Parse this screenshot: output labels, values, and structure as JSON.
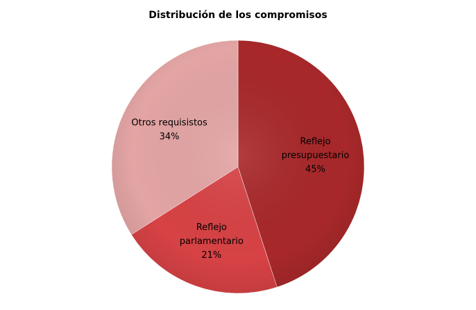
{
  "chart_data": {
    "type": "pie",
    "title": "Distribución de los compromisos",
    "start_angle_deg": 0,
    "direction": "clockwise",
    "slices": [
      {
        "name_lines": [
          "Reflejo",
          "presupuestario"
        ],
        "value": 45,
        "value_label": "45%",
        "color": "#A8282A",
        "label_color": "#ffffff"
      },
      {
        "name_lines": [
          "Reflejo",
          "parlamentario"
        ],
        "value": 21,
        "value_label": "21%",
        "color": "#D74245",
        "label_color": "#ffffff"
      },
      {
        "name_lines": [
          "Otros requisistos"
        ],
        "value": 34,
        "value_label": "34%",
        "color": "#E3A4A4",
        "label_color": "#000000"
      }
    ],
    "grid": false,
    "legend": "none",
    "data_labels": "inside"
  }
}
